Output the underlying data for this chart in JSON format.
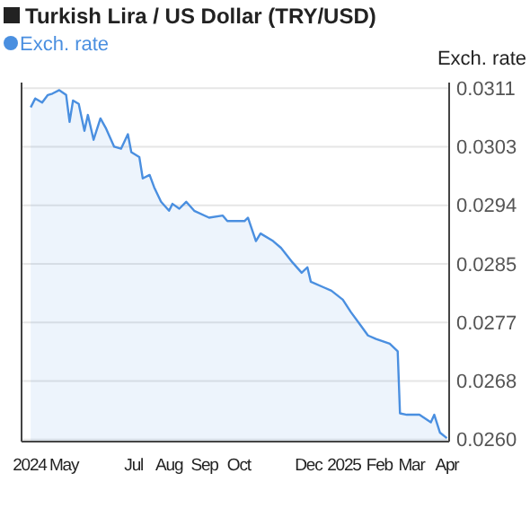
{
  "chart_data": {
    "type": "area",
    "title": "Turkish Lira / US Dollar (TRY/USD)",
    "ylabel": "Exch. rate",
    "legend": "top left",
    "grid": "y",
    "tick_labels": "xy",
    "xlim": [
      "2024-03-25",
      "2025-04-03"
    ],
    "ylim": [
      0.02597,
      0.03118
    ],
    "xticks": [
      {
        "value": "2024-04-01",
        "label": "2024"
      },
      {
        "value": "2024-05-01",
        "label": "May"
      },
      {
        "value": "2024-07-01",
        "label": "Jul"
      },
      {
        "value": "2024-08-01",
        "label": "Aug"
      },
      {
        "value": "2024-09-01",
        "label": "Sep"
      },
      {
        "value": "2024-10-01",
        "label": "Oct"
      },
      {
        "value": "2024-12-01",
        "label": "Dec"
      },
      {
        "value": "2025-01-01",
        "label": "2025"
      },
      {
        "value": "2025-02-01",
        "label": "Feb"
      },
      {
        "value": "2025-03-01",
        "label": "Mar"
      },
      {
        "value": "2025-04-01",
        "label": "Apr"
      }
    ],
    "yticks": [
      {
        "value": 0.026,
        "label": "0.0260"
      },
      {
        "value": 0.02685,
        "label": "0.0268"
      },
      {
        "value": 0.0277,
        "label": "0.0277"
      },
      {
        "value": 0.02855,
        "label": "0.0285"
      },
      {
        "value": 0.0294,
        "label": "0.0294"
      },
      {
        "value": 0.03025,
        "label": "0.0303"
      },
      {
        "value": 0.0311,
        "label": "0.0311"
      }
    ],
    "x": [
      "2024-04-02",
      "2024-04-06",
      "2024-04-12",
      "2024-04-17",
      "2024-04-21",
      "2024-04-27",
      "2024-05-03",
      "2024-05-06",
      "2024-05-09",
      "2024-05-14",
      "2024-05-19",
      "2024-05-22",
      "2024-05-27",
      "2024-06-02",
      "2024-06-07",
      "2024-06-14",
      "2024-06-20",
      "2024-06-26",
      "2024-06-29",
      "2024-07-06",
      "2024-07-09",
      "2024-07-15",
      "2024-07-19",
      "2024-07-25",
      "2024-08-01",
      "2024-08-04",
      "2024-08-10",
      "2024-08-16",
      "2024-08-23",
      "2024-09-05",
      "2024-09-17",
      "2024-09-21",
      "2024-10-06",
      "2024-10-09",
      "2024-10-16",
      "2024-10-20",
      "2024-10-31",
      "2024-11-07",
      "2024-11-17",
      "2024-11-25",
      "2024-11-30",
      "2024-12-03",
      "2024-12-14",
      "2024-12-21",
      "2024-12-31",
      "2025-01-07",
      "2025-01-15",
      "2025-01-22",
      "2025-01-29",
      "2025-02-10",
      "2025-02-17",
      "2025-02-19",
      "2025-02-25",
      "2025-03-08",
      "2025-03-18",
      "2025-03-21",
      "2025-03-26",
      "2025-04-01"
    ],
    "series": [
      {
        "name": "Exch. rate",
        "color": "#4a8fe0",
        "values": [
          0.03082,
          0.03095,
          0.03089,
          0.031,
          0.03102,
          0.03107,
          0.031,
          0.03061,
          0.03092,
          0.03087,
          0.03048,
          0.03071,
          0.03035,
          0.03066,
          0.03051,
          0.03025,
          0.03022,
          0.03043,
          0.03017,
          0.0301,
          0.02979,
          0.02984,
          0.02966,
          0.02945,
          0.02932,
          0.02942,
          0.02935,
          0.02945,
          0.02932,
          0.02922,
          0.02925,
          0.02917,
          0.02917,
          0.02922,
          0.02888,
          0.02899,
          0.02888,
          0.02878,
          0.02857,
          0.02842,
          0.0285,
          0.02829,
          0.02821,
          0.02816,
          0.02803,
          0.02785,
          0.02767,
          0.02751,
          0.02746,
          0.02739,
          0.02728,
          0.02638,
          0.02636,
          0.02636,
          0.02625,
          0.02636,
          0.0261,
          0.02602
        ]
      }
    ]
  }
}
